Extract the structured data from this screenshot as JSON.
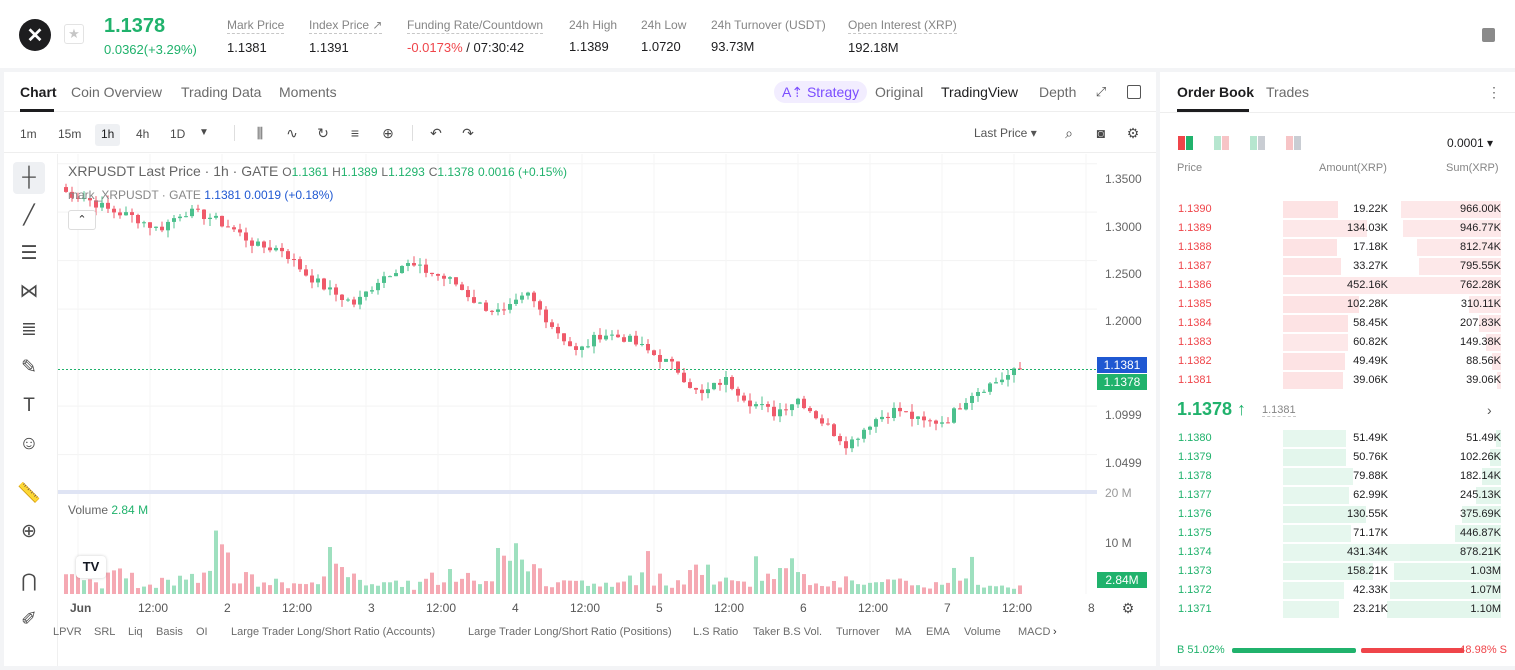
{
  "header": {
    "last_price": "1.1378",
    "change": "0.0362(+3.29%)",
    "stats": [
      {
        "label": "Mark Price",
        "value": "1.1381"
      },
      {
        "label": "Index Price ↗",
        "value": "1.1391"
      },
      {
        "label": "Funding Rate/Countdown",
        "value_neg": "-0.0173%",
        "value": " / 07:30:42"
      },
      {
        "label": "24h High",
        "value": "1.1389"
      },
      {
        "label": "24h Low",
        "value": "1.0720"
      },
      {
        "label": "24h Turnover (USDT)",
        "value": "93.73M"
      },
      {
        "label": "Open Interest (XRP)",
        "value": "192.18M"
      }
    ]
  },
  "chart_tabs": {
    "left": [
      "Chart",
      "Coin Overview",
      "Trading Data",
      "Moments"
    ],
    "strategy": "A⇡ Strategy",
    "right": [
      "Original",
      "TradingView",
      "Depth"
    ]
  },
  "toolbar": {
    "timeframes": [
      "1m",
      "15m",
      "1h",
      "4h",
      "1D"
    ],
    "price_type": "Last Price ▾"
  },
  "legend": {
    "title": "XRPUSDT Last Price · 1h · GATE",
    "o_label": "O",
    "o": "1.1361",
    "h_label": "H",
    "h": "1.1389",
    "l_label": "L",
    "l": "1.1293",
    "c_label": "C",
    "c": "1.1378",
    "change": "0.0016 (+0.15%)",
    "mark_prefix": "mark_XRPUSDT · GATE",
    "mark_values": "1.1381  0.0019 (+0.18%)",
    "volume_label": "Volume",
    "volume_value": "2.84 M"
  },
  "price_axis": [
    "1.3500",
    "1.3000",
    "1.2500",
    "1.2000",
    "1.0999",
    "1.0499"
  ],
  "price_tags": {
    "mark": "1.1381",
    "last": "1.1378"
  },
  "volume_axis": [
    "20 M",
    "10 M"
  ],
  "volume_tag": "2.84M",
  "time_axis": [
    "Jun",
    "12:00",
    "2",
    "12:00",
    "3",
    "12:00",
    "4",
    "12:00",
    "5",
    "12:00",
    "6",
    "12:00",
    "7",
    "12:00",
    "8"
  ],
  "indicators": [
    "LPVR",
    "SRL",
    "Liq",
    "Basis",
    "OI",
    "Large Trader Long/Short Ratio (Accounts)",
    "Large Trader Long/Short Ratio (Positions)",
    "L.S Ratio",
    "Taker B.S Vol.",
    "Turnover",
    "MA",
    "EMA",
    "Volume",
    "MACD"
  ],
  "order_book": {
    "tabs": [
      "Order Book",
      "Trades"
    ],
    "precision": "0.0001 ▾",
    "headers": {
      "price": "Price",
      "amount": "Amount(XRP)",
      "sum": "Sum(XRP)"
    },
    "asks": [
      {
        "price": "1.1390",
        "amount": "19.22K",
        "sum": "966.00K"
      },
      {
        "price": "1.1389",
        "amount": "134.03K",
        "sum": "946.77K"
      },
      {
        "price": "1.1388",
        "amount": "17.18K",
        "sum": "812.74K"
      },
      {
        "price": "1.1387",
        "amount": "33.27K",
        "sum": "795.55K"
      },
      {
        "price": "1.1386",
        "amount": "452.16K",
        "sum": "762.28K"
      },
      {
        "price": "1.1385",
        "amount": "102.28K",
        "sum": "310.11K"
      },
      {
        "price": "1.1384",
        "amount": "58.45K",
        "sum": "207.83K"
      },
      {
        "price": "1.1383",
        "amount": "60.82K",
        "sum": "149.38K"
      },
      {
        "price": "1.1382",
        "amount": "49.49K",
        "sum": "88.56K"
      },
      {
        "price": "1.1381",
        "amount": "39.06K",
        "sum": "39.06K"
      }
    ],
    "mid_price": "1.1378 ↑",
    "mid_mark": "1.1381",
    "bids": [
      {
        "price": "1.1380",
        "amount": "51.49K",
        "sum": "51.49K"
      },
      {
        "price": "1.1379",
        "amount": "50.76K",
        "sum": "102.26K"
      },
      {
        "price": "1.1378",
        "amount": "79.88K",
        "sum": "182.14K"
      },
      {
        "price": "1.1377",
        "amount": "62.99K",
        "sum": "245.13K"
      },
      {
        "price": "1.1376",
        "amount": "130.55K",
        "sum": "375.69K"
      },
      {
        "price": "1.1375",
        "amount": "71.17K",
        "sum": "446.87K"
      },
      {
        "price": "1.1374",
        "amount": "431.34K",
        "sum": "878.21K"
      },
      {
        "price": "1.1373",
        "amount": "158.21K",
        "sum": "1.03M"
      },
      {
        "price": "1.1372",
        "amount": "42.33K",
        "sum": "1.07M"
      },
      {
        "price": "1.1371",
        "amount": "23.21K",
        "sum": "1.10M"
      }
    ],
    "buy_ratio": "B 51.02%",
    "sell_ratio": "48.98% S"
  },
  "colors": {
    "up": "#20b26c",
    "down": "#ef454a",
    "accent": "#7b4dff"
  },
  "chart_data": {
    "type": "candlestick",
    "symbol": "XRPUSDT",
    "interval": "1h",
    "x": [
      "Jun",
      "2",
      "3",
      "4",
      "5",
      "6",
      "7",
      "8"
    ],
    "close_path": [
      1.322,
      1.315,
      1.302,
      1.295,
      1.282,
      1.301,
      1.296,
      1.283,
      1.265,
      1.262,
      1.236,
      1.218,
      1.205,
      1.232,
      1.247,
      1.238,
      1.228,
      1.205,
      1.195,
      1.215,
      1.183,
      1.155,
      1.175,
      1.17,
      1.155,
      1.14,
      1.11,
      1.128,
      1.105,
      1.093,
      1.108,
      1.083,
      1.06,
      1.085,
      1.097,
      1.083,
      1.085,
      1.113,
      1.125,
      1.138
    ],
    "volume_M": [
      4.2,
      3.1,
      5.5,
      2.8,
      3.9,
      6.8,
      12.1,
      4.5,
      3.2,
      2.9,
      3.4,
      9.8,
      4.1,
      3.6,
      2.7,
      3.2,
      6.2,
      4.8,
      13.7,
      7.5,
      4.4,
      3.1,
      2.6,
      3.7,
      5.3,
      3.9,
      7.3,
      3.5,
      4.7,
      5.8,
      7.1,
      4.2,
      3.6,
      2.9,
      3.1,
      3.5,
      2.7,
      5.9,
      3.3,
      2.84
    ],
    "ylim": [
      1.03,
      1.36
    ]
  }
}
